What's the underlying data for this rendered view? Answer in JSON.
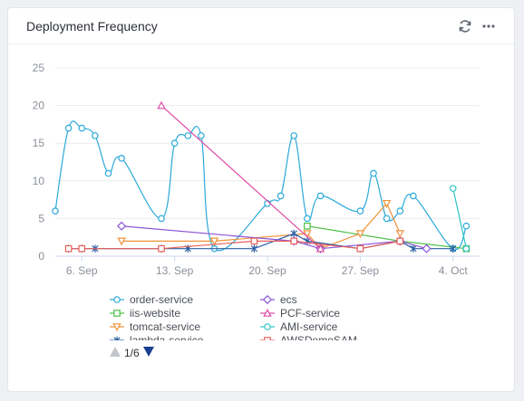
{
  "panel": {
    "title": "Deployment Frequency",
    "refresh_icon": "refresh-icon",
    "more_icon": "more-horizontal-icon"
  },
  "pager": {
    "text": "1/6"
  },
  "chart_data": {
    "type": "line",
    "ylim": [
      0,
      25
    ],
    "yticks": [
      0,
      5,
      10,
      15,
      20,
      25
    ],
    "xlim": [
      4.0,
      36.0
    ],
    "xticks": [
      {
        "x": 6,
        "label": "6. Sep"
      },
      {
        "x": 13,
        "label": "13. Sep"
      },
      {
        "x": 20,
        "label": "20. Sep"
      },
      {
        "x": 27,
        "label": "27. Sep"
      },
      {
        "x": 34,
        "label": "4. Oct"
      }
    ],
    "series": [
      {
        "name": "order-service",
        "color": "#2ba9d8",
        "marker": "circle",
        "smooth": true,
        "points": [
          [
            4,
            6
          ],
          [
            5,
            17
          ],
          [
            6,
            17
          ],
          [
            7,
            16
          ],
          [
            8,
            11
          ],
          [
            9,
            13
          ],
          [
            12,
            5
          ],
          [
            13,
            15
          ],
          [
            14,
            16
          ],
          [
            15,
            16
          ],
          [
            16,
            1
          ],
          [
            20,
            7
          ],
          [
            21,
            8
          ],
          [
            22,
            16
          ],
          [
            23,
            5
          ],
          [
            24,
            8
          ],
          [
            27,
            6
          ],
          [
            28,
            11
          ],
          [
            29,
            5
          ],
          [
            30,
            6
          ],
          [
            31,
            8
          ],
          [
            34,
            1
          ],
          [
            35,
            4
          ]
        ]
      },
      {
        "name": "iis-website",
        "color": "#4cc046",
        "marker": "square",
        "points": [
          [
            23,
            4
          ],
          [
            30,
            2
          ],
          [
            35,
            1
          ]
        ]
      },
      {
        "name": "tomcat-service",
        "color": "#f0923a",
        "marker": "triangle-down",
        "points": [
          [
            9,
            2
          ],
          [
            16,
            2
          ],
          [
            23,
            3
          ],
          [
            24,
            1
          ],
          [
            27,
            3
          ],
          [
            29,
            7
          ],
          [
            30,
            3
          ]
        ]
      },
      {
        "name": "lambda-service",
        "color": "#2a5ea3",
        "marker": "star",
        "points": [
          [
            5,
            1
          ],
          [
            6,
            1
          ],
          [
            7,
            1
          ],
          [
            12,
            1
          ],
          [
            14,
            1
          ],
          [
            19,
            1
          ],
          [
            22,
            3
          ],
          [
            23,
            2
          ],
          [
            27,
            1
          ],
          [
            30,
            2
          ],
          [
            31,
            1
          ],
          [
            34,
            1
          ]
        ]
      },
      {
        "name": "ecs",
        "color": "#8a55d6",
        "marker": "diamond",
        "points": [
          [
            9,
            4
          ],
          [
            22,
            2
          ],
          [
            24,
            1
          ],
          [
            30,
            2
          ],
          [
            32,
            1
          ]
        ]
      },
      {
        "name": "PCF-service",
        "color": "#e04aa6",
        "marker": "triangle",
        "points": [
          [
            12,
            20
          ],
          [
            24,
            1
          ]
        ]
      },
      {
        "name": "AMI-service",
        "color": "#2cc6c6",
        "marker": "circle",
        "points": [
          [
            34,
            9
          ],
          [
            35,
            1
          ]
        ]
      },
      {
        "name": "AWSDemoSAM",
        "color": "#e8605a",
        "marker": "square",
        "points": [
          [
            5,
            1
          ],
          [
            6,
            1
          ],
          [
            12,
            1
          ],
          [
            19,
            2
          ],
          [
            22,
            2
          ],
          [
            27,
            1
          ],
          [
            30,
            2
          ]
        ]
      }
    ],
    "legend": [
      "order-service",
      "ecs",
      "iis-website",
      "PCF-service",
      "tomcat-service",
      "AMI-service",
      "lambda-service",
      "AWSDemoSAM"
    ]
  }
}
